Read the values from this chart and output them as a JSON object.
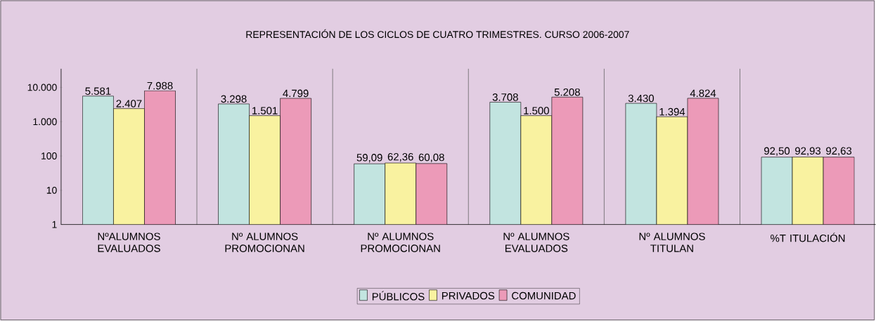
{
  "chart_data": {
    "type": "bar",
    "title": "REPRESENTACIÓN DE LOS CICLOS DE CUATRO TRIMESTRES. CURSO 2006-2007",
    "categories": [
      "NºALUMNOS EVALUADOS",
      "Nº ALUMNOS PROMOCIONAN",
      "Nº ALUMNOS PROMOCIONAN",
      "Nº ALUMNOS EVALUADOS",
      "Nº ALUMNOS TITULAN",
      "%T ITULACIÓN"
    ],
    "series": [
      {
        "name": "PÚBLICOS",
        "color": "#c2e4e0",
        "values": [
          5581,
          3298,
          59.09,
          3708,
          3430,
          92.5
        ],
        "value_labels": [
          "5.581",
          "3.298",
          "59,09",
          "3.708",
          "3.430",
          "92,50"
        ]
      },
      {
        "name": "PRIVADOS",
        "color": "#f9f2a0",
        "values": [
          2407,
          1501,
          62.36,
          1500,
          1394,
          92.93
        ],
        "value_labels": [
          "2.407",
          "1.501",
          "62,36",
          "1.500",
          "1.394",
          "92,93"
        ]
      },
      {
        "name": "COMUNIDAD",
        "color": "#ec9ab8",
        "values": [
          7988,
          4799,
          60.08,
          5208,
          4824,
          92.63
        ],
        "value_labels": [
          "7.988",
          "4.799",
          "60,08",
          "5.208",
          "4.824",
          "92,63"
        ]
      }
    ],
    "log": "y",
    "ylim": [
      1,
      35000
    ],
    "yticks": [
      1,
      10,
      100,
      {
        "value": 1000,
        "label": "1.000"
      },
      {
        "value": 10000,
        "label": "10.000"
      }
    ],
    "grid": "x",
    "legend": "bottom"
  }
}
